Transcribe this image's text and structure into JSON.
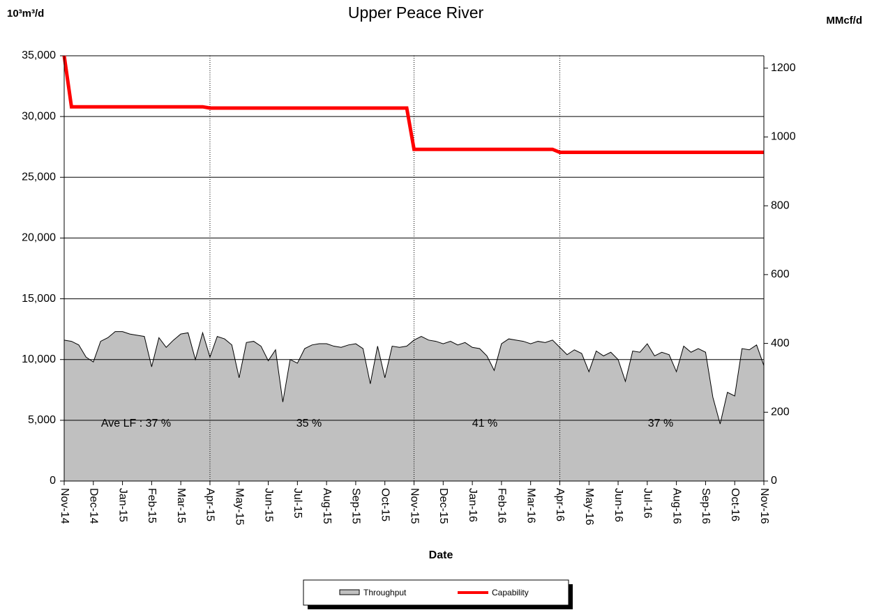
{
  "chart_data": {
    "type": "area",
    "subtitle": "Upper Peace River",
    "y_label": "10³m³/d",
    "y2_label": "MMcf/d",
    "x_label": "Date",
    "categories": [
      "Nov-14",
      null,
      null,
      null,
      "Dec-14",
      null,
      null,
      null,
      "Jan-15",
      null,
      null,
      null,
      "Feb-15",
      null,
      null,
      null,
      "Mar-15",
      null,
      null,
      null,
      "Apr-15",
      null,
      null,
      null,
      "May-15",
      null,
      null,
      null,
      "Jun-15",
      null,
      null,
      null,
      "Jul-15",
      null,
      null,
      null,
      "Aug-15",
      null,
      null,
      null,
      "Sep-15",
      null,
      null,
      null,
      "Oct-15",
      null,
      null,
      null,
      "Nov-15",
      null,
      null,
      null,
      "Dec-15",
      null,
      null,
      null,
      "Jan-16",
      null,
      null,
      null,
      "Feb-16",
      null,
      null,
      null,
      "Mar-16",
      null,
      null,
      null,
      "Apr-16",
      null,
      null,
      null,
      "May-16",
      null,
      null,
      null,
      "Jun-16",
      null,
      null,
      null,
      "Jul-16",
      null,
      null,
      null,
      "Aug-16",
      null,
      null,
      null,
      "Sep-16",
      null,
      null,
      null,
      "Oct-16",
      null,
      null,
      null,
      "Nov-16"
    ],
    "series": [
      {
        "name": "Throughput",
        "color": "#c0c0c0",
        "values": [
          11600,
          11500,
          11200,
          10200,
          9800,
          11500,
          11800,
          12300,
          12300,
          12100,
          12000,
          11900,
          9400,
          11800,
          11000,
          11600,
          12100,
          12200,
          10000,
          12200,
          10200,
          11900,
          11700,
          11200,
          8500,
          11400,
          11500,
          11100,
          9900,
          10800,
          6500,
          10000,
          9700,
          10900,
          11200,
          11300,
          11300,
          11100,
          11000,
          11200,
          11300,
          10900,
          8000,
          11100,
          8500,
          11100,
          11000,
          11100,
          11600,
          11900,
          11600,
          11500,
          11300,
          11500,
          11200,
          11400,
          11000,
          10900,
          10300,
          9100,
          11300,
          11700,
          11600,
          11500,
          11300,
          11500,
          11400,
          11600,
          11000,
          10400,
          10800,
          10500,
          9000,
          10700,
          10300,
          10600,
          10000,
          8200,
          10700,
          10600,
          11300,
          10300,
          10600,
          10400,
          9000,
          11100,
          10600,
          10900,
          10600,
          6900,
          4700,
          7300,
          7000,
          10900,
          10800,
          11200,
          9500
        ]
      },
      {
        "name": "Capability",
        "color": "#ff0000",
        "values": [
          35000,
          30800,
          30800,
          30800,
          30800,
          30800,
          30800,
          30800,
          30800,
          30800,
          30800,
          30800,
          30800,
          30800,
          30800,
          30800,
          30800,
          30800,
          30800,
          30800,
          30700,
          30700,
          30700,
          30700,
          30700,
          30700,
          30700,
          30700,
          30700,
          30700,
          30700,
          30700,
          30700,
          30700,
          30700,
          30700,
          30700,
          30700,
          30700,
          30700,
          30700,
          30700,
          30700,
          30700,
          30700,
          30700,
          30700,
          30700,
          27300,
          27300,
          27300,
          27300,
          27300,
          27300,
          27300,
          27300,
          27300,
          27300,
          27300,
          27300,
          27300,
          27300,
          27300,
          27300,
          27300,
          27300,
          27300,
          27300,
          27050,
          27050,
          27050,
          27050,
          27050,
          27050,
          27050,
          27050,
          27050,
          27050,
          27050,
          27050,
          27050,
          27050,
          27050,
          27050,
          27050,
          27050,
          27050,
          27050,
          27050,
          27050,
          27050,
          27050,
          27050,
          27050,
          27050,
          27050,
          27050
        ]
      }
    ],
    "ylim": [
      0,
      35000
    ],
    "yticks": [
      {
        "value": 0,
        "label": "0"
      },
      {
        "value": 5000,
        "label": "5,000"
      },
      {
        "value": 10000,
        "label": "10,000"
      },
      {
        "value": 15000,
        "label": "15,000"
      },
      {
        "value": 20000,
        "label": "20,000"
      },
      {
        "value": 25000,
        "label": "25,000"
      },
      {
        "value": 30000,
        "label": "30,000"
      },
      {
        "value": 35000,
        "label": "35,000"
      }
    ],
    "y2lim": [
      0,
      1236
    ],
    "y2ticks": [
      0,
      200,
      400,
      600,
      800,
      1000,
      1200
    ],
    "annotations": [
      "Ave LF : 37 %",
      "35 %",
      "41 %",
      "37 %"
    ],
    "grid": true
  }
}
